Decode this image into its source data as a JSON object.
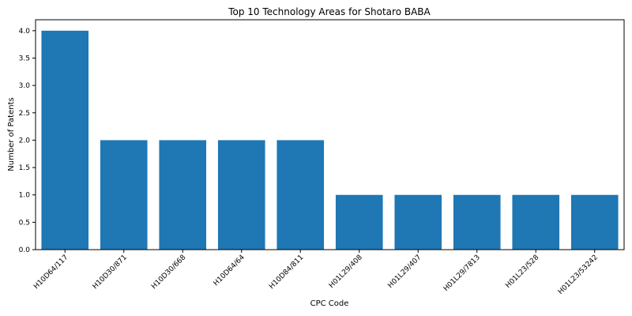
{
  "chart_data": {
    "type": "bar",
    "title": "Top 10 Technology Areas for Shotaro BABA",
    "xlabel": "CPC Code",
    "ylabel": "Number of Patents",
    "categories": [
      "H10D64/117",
      "H10D30/871",
      "H10D30/668",
      "H10D64/64",
      "H10D84/811",
      "H01L29/408",
      "H01L29/407",
      "H01L29/7813",
      "H01L23/528",
      "H01L23/53242"
    ],
    "values": [
      4,
      2,
      2,
      2,
      2,
      1,
      1,
      1,
      1,
      1
    ],
    "ylim": [
      0,
      4.2
    ],
    "yticks": [
      "0.0",
      "0.5",
      "1.0",
      "1.5",
      "2.0",
      "2.5",
      "3.0",
      "3.5",
      "4.0"
    ],
    "grid": false,
    "legend": "none",
    "bar_color": "#1f77b4"
  }
}
